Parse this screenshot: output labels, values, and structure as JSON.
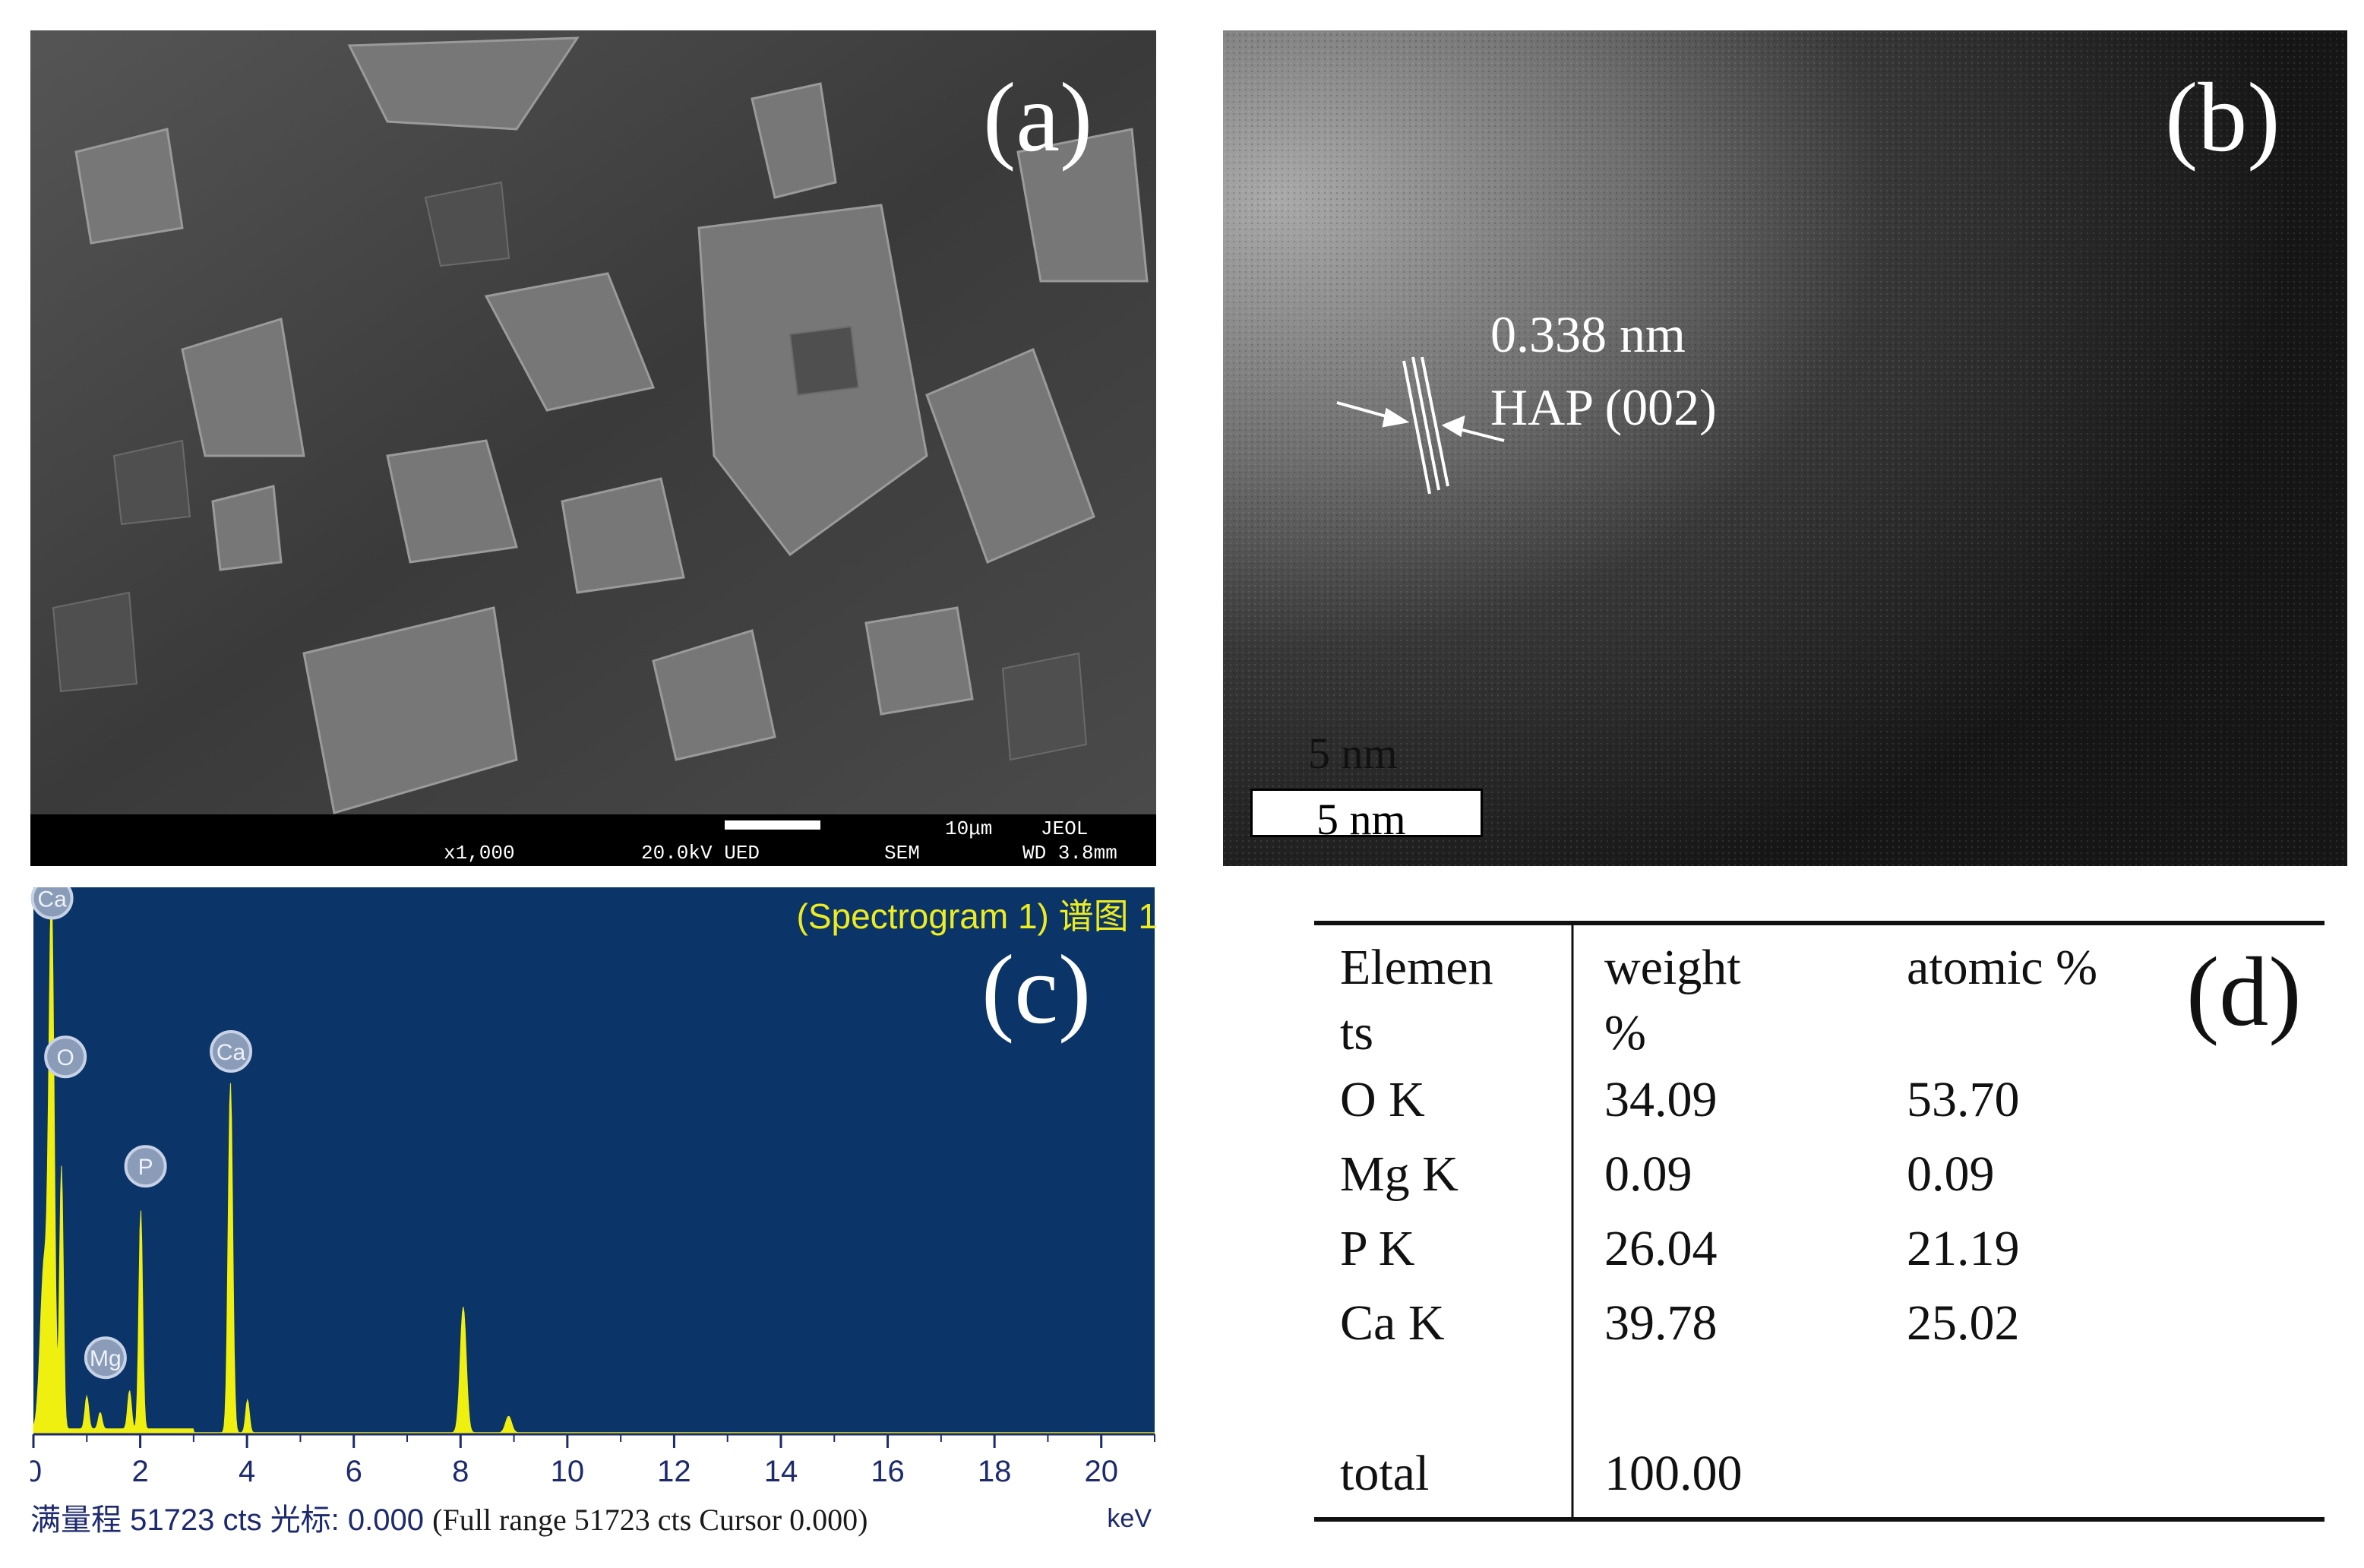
{
  "panels": {
    "a": {
      "letter": "(a)",
      "sem_info": {
        "mag": "x1,000",
        "kv": "20.0kV UED",
        "mode": "SEM",
        "scale": "10μm",
        "brand": "JEOL",
        "wd": "WD 3.8mm"
      }
    },
    "b": {
      "letter": "(b)",
      "spacing": "0.338 nm",
      "plane": "HAP (002)",
      "scale_shadow": "5 nm",
      "scale": "5 nm"
    },
    "c": {
      "letter": "(c)",
      "title": "(Spectrogram 1) 谱图 1",
      "footer_cn": "满量程 51723 cts 光标: 0.000",
      "footer_en": "(Full range 51723 cts Cursor 0.000)",
      "unit": "keV"
    },
    "d": {
      "letter": "(d)"
    }
  },
  "chart_data": {
    "type": "line",
    "title": "(Spectrogram 1) 谱图 1",
    "xlabel": "keV",
    "ylabel": "",
    "xlim": [
      0,
      21
    ],
    "ylim": [
      0,
      1
    ],
    "x_ticks": [
      0,
      2,
      4,
      6,
      8,
      10,
      12,
      14,
      16,
      18,
      20
    ],
    "background": "#0b3468",
    "fill_color": "#f0f010",
    "peaks": [
      {
        "label": "Ca",
        "x": 0.34,
        "h": 0.94,
        "w": 0.07
      },
      {
        "label": "",
        "x": 0.2,
        "h": 0.3,
        "w": 0.1
      },
      {
        "label": "O",
        "x": 0.525,
        "h": 0.48,
        "w": 0.05
      },
      {
        "label": "Mg",
        "x": 1.25,
        "h": 0.03,
        "w": 0.05
      },
      {
        "label": "",
        "x": 1.0,
        "h": 0.06,
        "w": 0.05
      },
      {
        "label": "P",
        "x": 2.01,
        "h": 0.4,
        "w": 0.05
      },
      {
        "label": "",
        "x": 1.8,
        "h": 0.07,
        "w": 0.05
      },
      {
        "label": "Ca",
        "x": 3.69,
        "h": 0.64,
        "w": 0.06
      },
      {
        "label": "",
        "x": 4.01,
        "h": 0.06,
        "w": 0.05
      },
      {
        "label": "",
        "x": 8.05,
        "h": 0.23,
        "w": 0.08
      },
      {
        "label": "",
        "x": 8.9,
        "h": 0.03,
        "w": 0.08
      }
    ],
    "annotations": [
      {
        "label": "Ca",
        "x": 0.35,
        "y": 0.98
      },
      {
        "label": "O",
        "x": 0.6,
        "y": 0.69
      },
      {
        "label": "P",
        "x": 2.1,
        "y": 0.49
      },
      {
        "label": "Ca",
        "x": 3.7,
        "y": 0.7
      },
      {
        "label": "Mg",
        "x": 1.35,
        "y": 0.14
      }
    ]
  },
  "table": {
    "headers": [
      "Elemen\nts",
      "weight\n%",
      "atomic %"
    ],
    "rows": [
      [
        "O K",
        "34.09",
        "53.70"
      ],
      [
        "Mg K",
        "0.09",
        "0.09"
      ],
      [
        "P K",
        "26.04",
        "21.19"
      ],
      [
        "Ca K",
        "39.78",
        "25.02"
      ]
    ],
    "total": [
      "total",
      "100.00"
    ]
  }
}
